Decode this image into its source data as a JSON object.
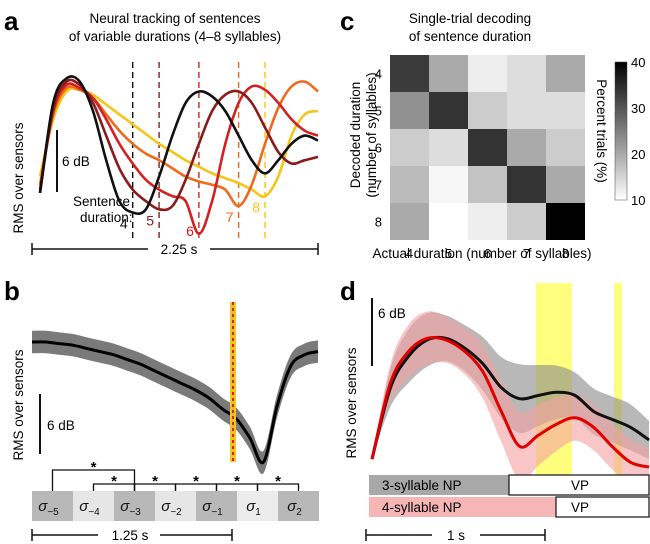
{
  "panels": {
    "a": {
      "label": "a",
      "title_line1": "Neural tracking of sentences",
      "title_line2": "of variable durations (4–8 syllables)",
      "ylabel": "RMS over sensors",
      "scalebar": "6 dB",
      "legend_line1": "Sentence",
      "legend_line2": "duration:",
      "time_label": "2.25 s"
    },
    "b": {
      "label": "b",
      "ylabel": "RMS over sensors",
      "scalebar": "6 dB",
      "time_label": "1.25 s",
      "star": "*",
      "sigma_base": "σ",
      "sigma_subs": [
        "−5",
        "−4",
        "−3",
        "−2",
        "−1",
        "1",
        "2"
      ]
    },
    "c": {
      "label": "c",
      "title_line1": "Single-trial decoding",
      "title_line2": "of sentence duration",
      "ylabel_line1": "Decoded duration",
      "ylabel_line2": "(number of syllables)",
      "xlabel": "Actual duration (number of syllables)",
      "colorbar_label": "Percent trials (%)"
    },
    "d": {
      "label": "d",
      "ylabel": "RMS over sensors",
      "scalebar": "6 dB",
      "time_label": "1 s",
      "np3": "3-syllable NP",
      "np4": "4-syllable NP",
      "vp": "VP"
    }
  },
  "chart_data": [
    {
      "panel": "a",
      "type": "line",
      "series": [
        {
          "name": "4",
          "color": "#111111",
          "values": [
            20,
            75,
            90,
            88,
            70,
            40,
            15,
            8,
            10,
            30,
            55,
            75,
            82,
            79,
            70,
            55,
            40,
            32,
            40,
            50,
            55,
            52
          ]
        },
        {
          "name": "5",
          "color": "#8b1a1a",
          "values": [
            20,
            72,
            88,
            86,
            75,
            55,
            35,
            22,
            15,
            10,
            12,
            28,
            50,
            70,
            80,
            82,
            75,
            60,
            45,
            38,
            40,
            42
          ]
        },
        {
          "name": "6",
          "color": "#d42020",
          "values": [
            22,
            70,
            86,
            84,
            78,
            65,
            50,
            38,
            28,
            22,
            18,
            15,
            -5,
            15,
            50,
            75,
            85,
            83,
            75,
            65,
            58,
            55
          ]
        },
        {
          "name": "7",
          "color": "#ee6a1a",
          "values": [
            25,
            68,
            84,
            83,
            78,
            68,
            58,
            50,
            44,
            40,
            35,
            30,
            27,
            25,
            22,
            12,
            25,
            50,
            72,
            85,
            88,
            82
          ]
        },
        {
          "name": "8",
          "color": "#f5c518",
          "values": [
            30,
            65,
            82,
            83,
            80,
            74,
            68,
            62,
            56,
            50,
            45,
            40,
            36,
            32,
            29,
            26,
            22,
            18,
            30,
            55,
            68,
            70
          ]
        }
      ],
      "event_markers": [
        "4",
        "5",
        "6",
        "7",
        "8"
      ],
      "ylim": [
        -10,
        100
      ]
    },
    {
      "panel": "b",
      "type": "line",
      "values": [
        80,
        80,
        79,
        78,
        76,
        74,
        72,
        69,
        66,
        62,
        58,
        54,
        50,
        45,
        38,
        32,
        20,
        5,
        40,
        65,
        72,
        74
      ],
      "sem": 7,
      "significance_pairs": [
        [
          "−5",
          "−3"
        ],
        [
          "−4",
          "−3"
        ],
        [
          "−3",
          "−2"
        ],
        [
          "−2",
          "−1"
        ],
        [
          "−1",
          "1"
        ],
        [
          "1",
          "2"
        ]
      ]
    },
    {
      "panel": "c",
      "type": "heatmap",
      "x_categories": [
        "4",
        "5",
        "6",
        "7",
        "8"
      ],
      "y_categories": [
        "4",
        "5",
        "6",
        "7",
        "8"
      ],
      "values": [
        [
          33,
          20,
          12,
          14,
          20
        ],
        [
          23,
          34,
          16,
          14,
          14
        ],
        [
          16,
          14,
          34,
          20,
          16
        ],
        [
          18,
          11,
          17,
          34,
          20
        ],
        [
          20,
          10,
          12,
          16,
          40
        ]
      ],
      "colorbar_ticks": [
        10,
        20,
        30,
        40
      ],
      "vmin": 10,
      "vmax": 40
    },
    {
      "panel": "d",
      "type": "line",
      "series": [
        {
          "name": "3-syllable NP",
          "color": "#111111",
          "band_color": "#888888",
          "values": [
            10,
            55,
            75,
            85,
            86,
            80,
            70,
            55,
            48,
            50,
            52,
            50,
            40,
            35,
            30,
            22
          ]
        },
        {
          "name": "4-syllable NP",
          "color": "#e00000",
          "band_color": "#f4a0a0",
          "values": [
            10,
            58,
            78,
            86,
            85,
            78,
            65,
            40,
            18,
            25,
            32,
            36,
            30,
            18,
            8,
            5
          ]
        }
      ],
      "highlight": "#ffff66"
    }
  ]
}
